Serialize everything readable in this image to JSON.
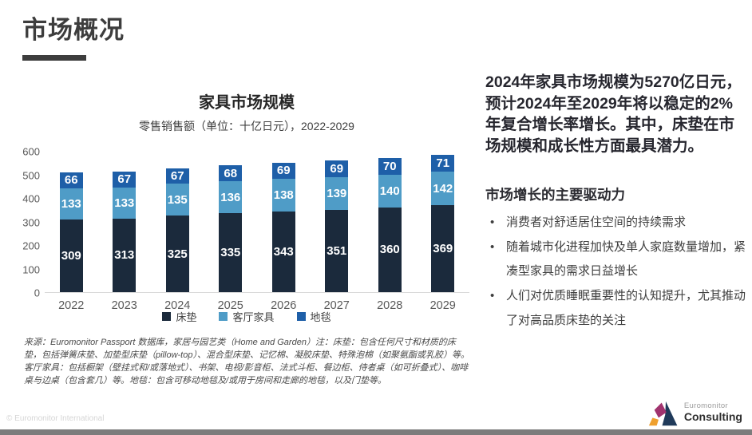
{
  "page": {
    "title": "市场概况",
    "copyright": "© Euromonitor International"
  },
  "chart_data": {
    "type": "bar",
    "stacked": true,
    "title": "家具市场规模",
    "subtitle": "零售销售额（单位：十亿日元），2022-2029",
    "categories": [
      "2022",
      "2023",
      "2024",
      "2025",
      "2026",
      "2027",
      "2028",
      "2029"
    ],
    "series": [
      {
        "name": "床垫",
        "color": "#1b2a3c",
        "values": [
          309,
          313,
          325,
          335,
          343,
          351,
          360,
          369
        ]
      },
      {
        "name": "客厅家具",
        "color": "#4f9cc7",
        "values": [
          133,
          133,
          135,
          136,
          138,
          139,
          140,
          142
        ]
      },
      {
        "name": "地毯",
        "color": "#1e5fa8",
        "values": [
          66,
          67,
          67,
          68,
          69,
          69,
          70,
          71
        ]
      }
    ],
    "ylim": [
      0,
      600
    ],
    "yticks": [
      0,
      100,
      200,
      300,
      400,
      500,
      600
    ],
    "grid": false,
    "legend_position": "bottom"
  },
  "insight": {
    "headline": "2024年家具市场规模为5270亿日元，预计2024年至2029年将以稳定的2%年复合增长率增长。其中，床垫在市场规模和成长性方面最具潜力。",
    "drivers_title": "市场增长的主要驱动力",
    "drivers": [
      "消费者对舒适居住空间的持续需求",
      "随着城市化进程加快及单人家庭数量增加，紧凑型家具的需求日益增长",
      "人们对优质睡眠重要性的认知提升，尤其推动了对高品质床垫的关注"
    ]
  },
  "footnote": "来源：Euromonitor Passport 数据库，家居与园艺类（Home and Garden）注：床垫：包含任何尺寸和材质的床垫，包括弹簧床垫、加垫型床垫（pillow-top）、混合型床垫、记忆棉、凝胶床垫、特殊泡棉（如聚氨酯或乳胶）等。客厅家具：包括橱架（壁挂式和/或落地式）、书架、电视/影音柜、法式斗柜、餐边柜、侍者桌（如可折叠式）、咖啡桌与边桌（包含套几）等。地毯：包含可移动地毯及/或用于房间和走廊的地毯，以及门垫等。",
  "logo": {
    "line1": "Euromonitor",
    "line2": "Consulting",
    "colors": {
      "magenta": "#a0336e",
      "navy": "#1f3a5a",
      "orange": "#efa02e"
    }
  }
}
